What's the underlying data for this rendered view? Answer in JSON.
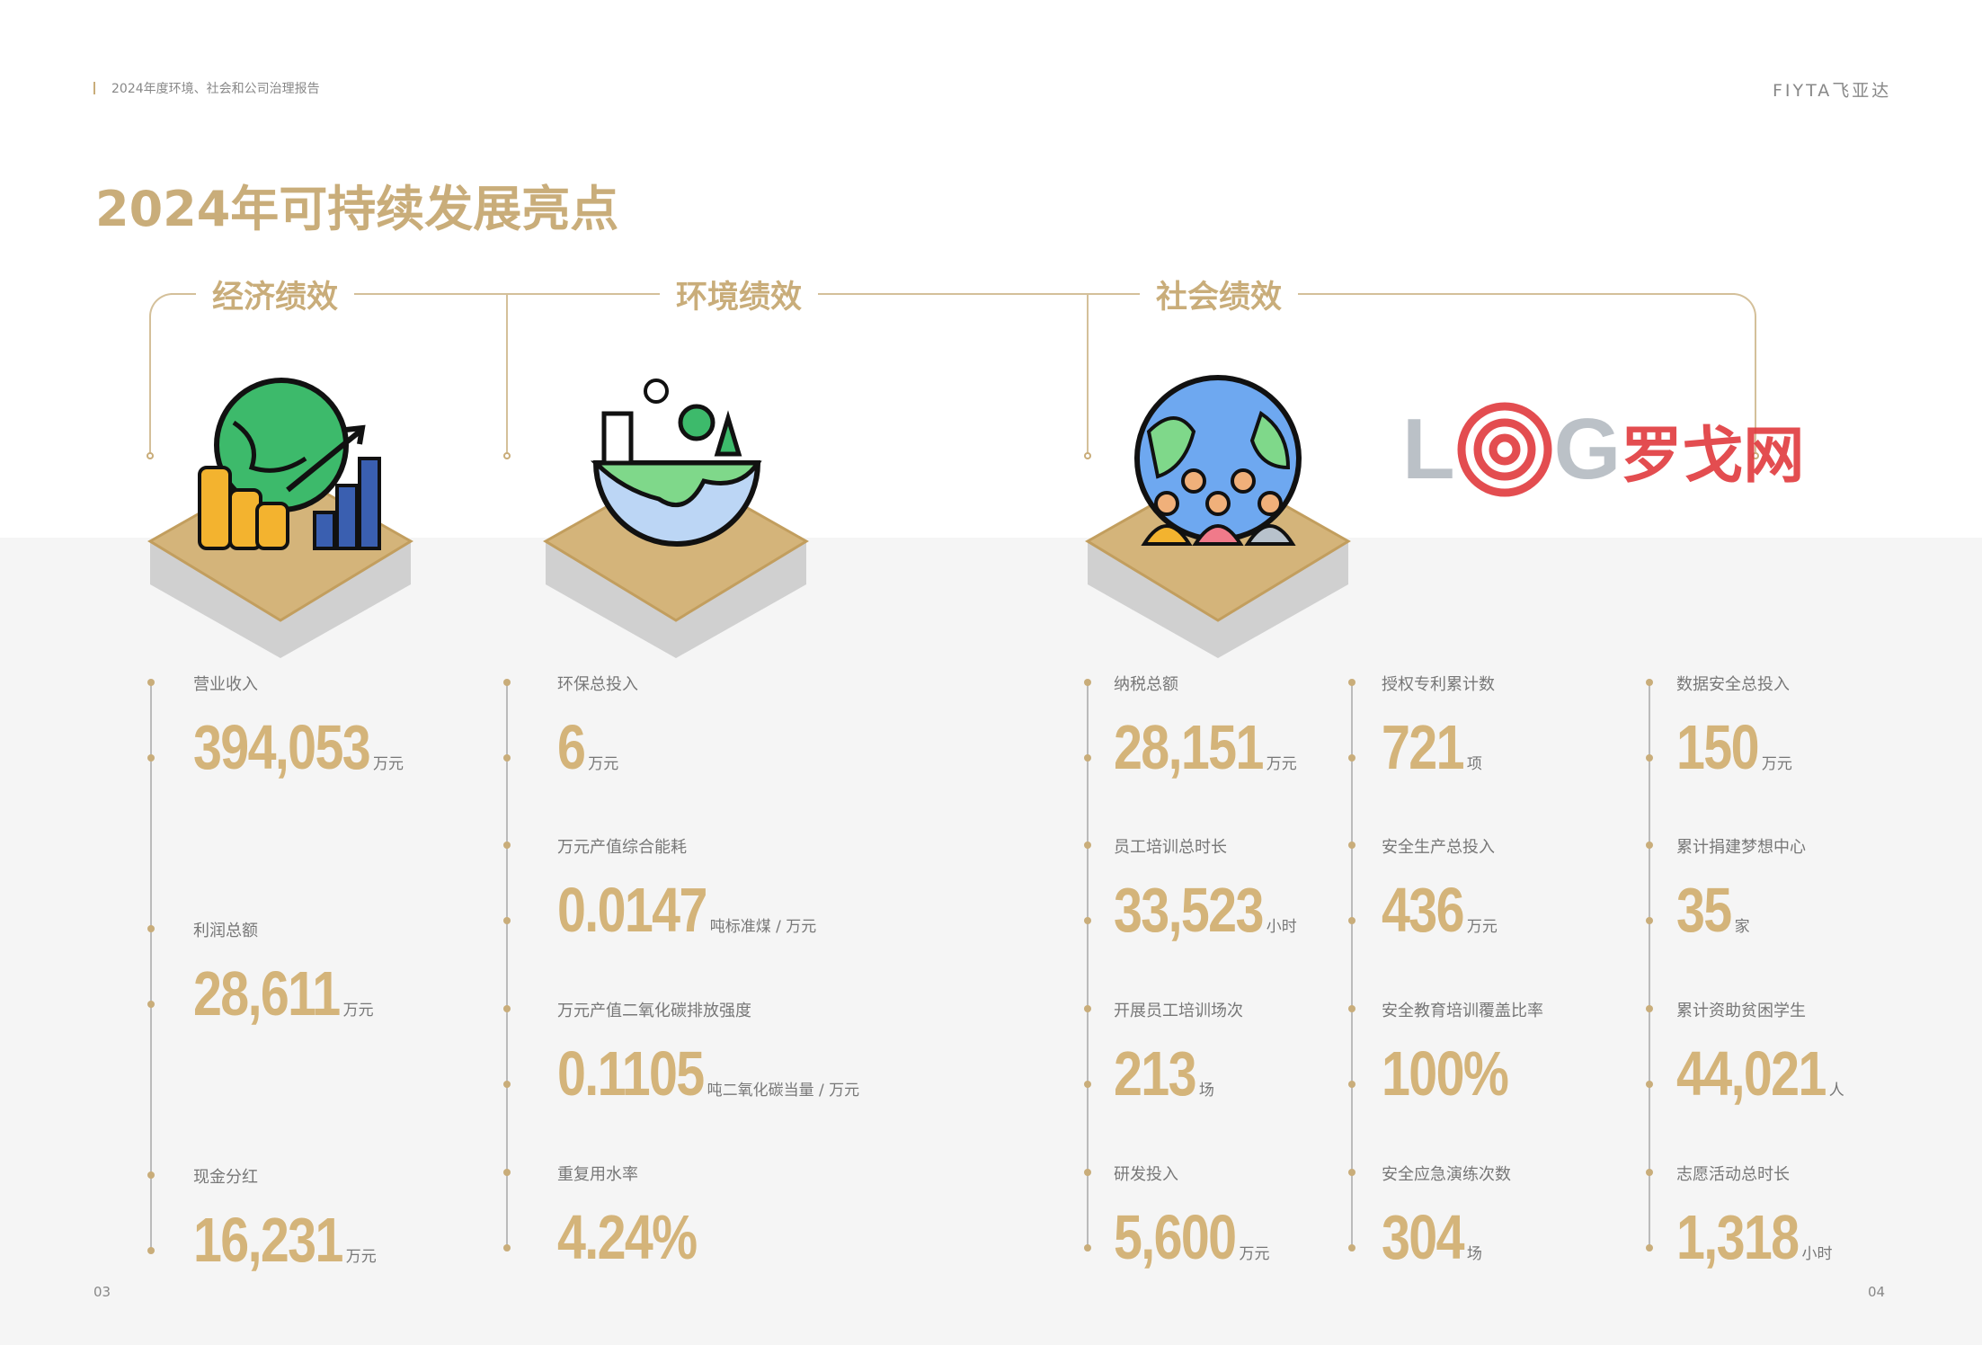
{
  "header": {
    "report": "2024年度环境、社会和公司治理报告",
    "brand": "FIYTA飞亚达"
  },
  "title": "2024年可持续发展亮点",
  "sections": [
    {
      "title": "经济绩效",
      "icon": "globe-coins-chart-icon"
    },
    {
      "title": "环境绩效",
      "icon": "earth-city-trees-icon"
    },
    {
      "title": "社会绩效",
      "icon": "globe-people-icon"
    }
  ],
  "economic": [
    {
      "label": "营业收入",
      "value": "394,053",
      "unit": "万元"
    },
    {
      "label": "利润总额",
      "value": "28,611",
      "unit": "万元"
    },
    {
      "label": "现金分红",
      "value": "16,231",
      "unit": "万元"
    }
  ],
  "environment": [
    {
      "label": "环保总投入",
      "value": "6",
      "unit": "万元"
    },
    {
      "label": "万元产值综合能耗",
      "value": "0.0147",
      "unit": "吨标准煤 / 万元"
    },
    {
      "label": "万元产值二氧化碳排放强度",
      "value": "0.1105",
      "unit": "吨二氧化碳当量 / 万元"
    },
    {
      "label": "重复用水率",
      "value": "4.24%",
      "unit": ""
    }
  ],
  "social1": [
    {
      "label": "纳税总额",
      "value": "28,151",
      "unit": "万元"
    },
    {
      "label": "员工培训总时长",
      "value": "33,523",
      "unit": "小时"
    },
    {
      "label": "开展员工培训场次",
      "value": "213",
      "unit": "场"
    },
    {
      "label": "研发投入",
      "value": "5,600",
      "unit": "万元"
    }
  ],
  "social2": [
    {
      "label": "授权专利累计数",
      "value": "721",
      "unit": "项"
    },
    {
      "label": "安全生产总投入",
      "value": "436",
      "unit": "万元"
    },
    {
      "label": "安全教育培训覆盖比率",
      "value": "100%",
      "unit": ""
    },
    {
      "label": "安全应急演练次数",
      "value": "304",
      "unit": "场"
    }
  ],
  "social3": [
    {
      "label": "数据安全总投入",
      "value": "150",
      "unit": "万元"
    },
    {
      "label": "累计捐建梦想中心",
      "value": "35",
      "unit": "家"
    },
    {
      "label": "累计资助贫困学生",
      "value": "44,021",
      "unit": "人"
    },
    {
      "label": "志愿活动总时长",
      "value": "1,318",
      "unit": "小时"
    }
  ],
  "pages": {
    "left": "03",
    "right": "04"
  },
  "watermark": "LOG罗戈网",
  "colors": {
    "accent": "#c9ad7a",
    "number": "#d4b47a",
    "background": "#f5f5f5",
    "watermark": "#e03a3e"
  }
}
